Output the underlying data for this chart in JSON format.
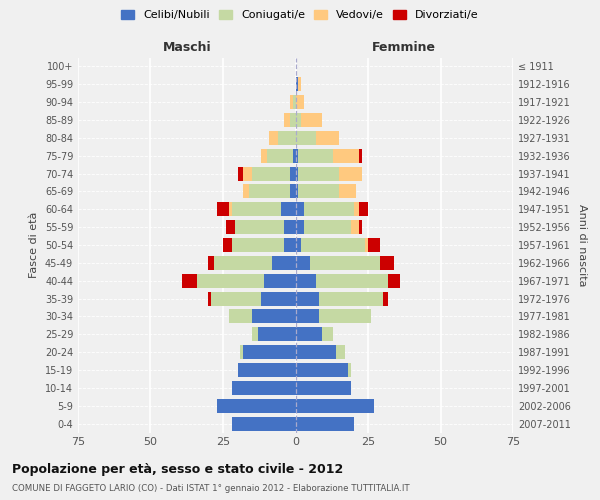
{
  "age_groups": [
    "0-4",
    "5-9",
    "10-14",
    "15-19",
    "20-24",
    "25-29",
    "30-34",
    "35-39",
    "40-44",
    "45-49",
    "50-54",
    "55-59",
    "60-64",
    "65-69",
    "70-74",
    "75-79",
    "80-84",
    "85-89",
    "90-94",
    "95-99",
    "100+"
  ],
  "birth_years": [
    "2007-2011",
    "2002-2006",
    "1997-2001",
    "1992-1996",
    "1987-1991",
    "1982-1986",
    "1977-1981",
    "1972-1976",
    "1967-1971",
    "1962-1966",
    "1957-1961",
    "1952-1956",
    "1947-1951",
    "1942-1946",
    "1937-1941",
    "1932-1936",
    "1927-1931",
    "1922-1926",
    "1917-1921",
    "1912-1916",
    "≤ 1911"
  ],
  "male": {
    "celibi": [
      22,
      27,
      22,
      20,
      18,
      13,
      15,
      12,
      11,
      8,
      4,
      4,
      5,
      2,
      2,
      1,
      0,
      0,
      0,
      0,
      0
    ],
    "coniugati": [
      0,
      0,
      0,
      0,
      1,
      2,
      8,
      17,
      23,
      20,
      18,
      17,
      17,
      14,
      13,
      9,
      6,
      2,
      1,
      0,
      0
    ],
    "vedovi": [
      0,
      0,
      0,
      0,
      0,
      0,
      0,
      0,
      0,
      0,
      0,
      0,
      1,
      2,
      3,
      2,
      3,
      2,
      1,
      0,
      0
    ],
    "divorziati": [
      0,
      0,
      0,
      0,
      0,
      0,
      0,
      1,
      5,
      2,
      3,
      3,
      4,
      0,
      2,
      0,
      0,
      0,
      0,
      0,
      0
    ]
  },
  "female": {
    "nubili": [
      20,
      27,
      19,
      18,
      14,
      9,
      8,
      8,
      7,
      5,
      2,
      3,
      3,
      1,
      1,
      1,
      0,
      0,
      0,
      1,
      0
    ],
    "coniugate": [
      0,
      0,
      0,
      1,
      3,
      4,
      18,
      22,
      25,
      24,
      22,
      16,
      17,
      14,
      14,
      12,
      7,
      2,
      0,
      0,
      0
    ],
    "vedove": [
      0,
      0,
      0,
      0,
      0,
      0,
      0,
      0,
      0,
      0,
      1,
      3,
      2,
      6,
      8,
      9,
      8,
      7,
      3,
      1,
      0
    ],
    "divorziate": [
      0,
      0,
      0,
      0,
      0,
      0,
      0,
      2,
      4,
      5,
      4,
      1,
      3,
      0,
      0,
      1,
      0,
      0,
      0,
      0,
      0
    ]
  },
  "colors": {
    "celibi": "#4472c4",
    "coniugati": "#c5d9a3",
    "vedovi": "#ffc97f",
    "divorziati": "#cc0000"
  },
  "title": "Popolazione per età, sesso e stato civile - 2012",
  "subtitle": "COMUNE DI FAGGETO LARIO (CO) - Dati ISTAT 1° gennaio 2012 - Elaborazione TUTTITALIA.IT",
  "xlim": 75,
  "xlabel_left": "Maschi",
  "xlabel_right": "Femmine",
  "ylabel_left": "Fasce di età",
  "ylabel_right": "Anni di nascita",
  "legend_labels": [
    "Celibi/Nubili",
    "Coniugati/e",
    "Vedovi/e",
    "Divorziati/e"
  ],
  "background_color": "#f0f0f0"
}
